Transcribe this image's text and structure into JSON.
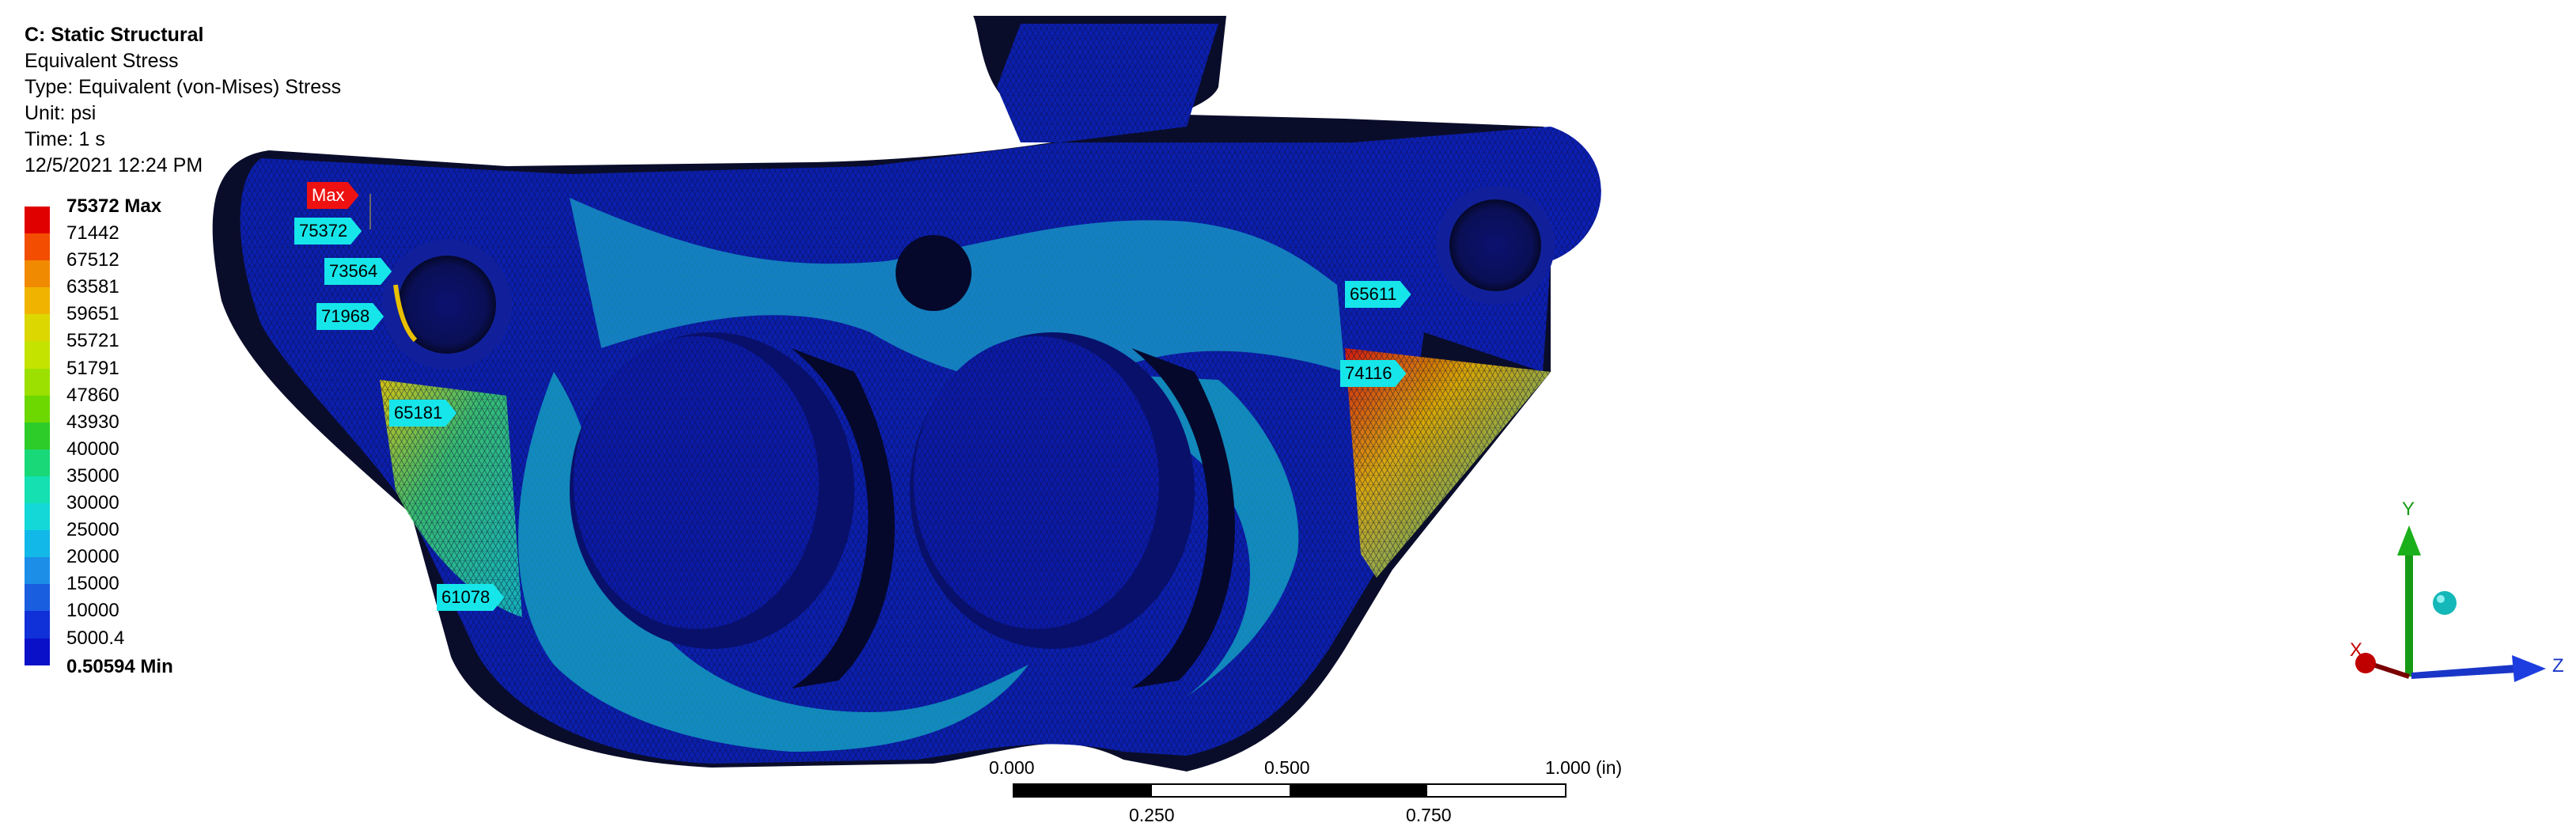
{
  "header": {
    "title": "C: Static Structural",
    "result": "Equivalent Stress",
    "type": "Type: Equivalent (von-Mises) Stress",
    "unit": "Unit: psi",
    "time": "Time: 1 s",
    "timestamp": "12/5/2021 12:24 PM"
  },
  "legend": {
    "max_label": "75372 Max",
    "min_label": "0.50594 Min",
    "values": [
      "71442",
      "67512",
      "63581",
      "59651",
      "55721",
      "51791",
      "47860",
      "43930",
      "40000",
      "35000",
      "30000",
      "25000",
      "20000",
      "15000",
      "10000",
      "5000.4"
    ],
    "colors": [
      "#e10000",
      "#f24d00",
      "#f08a00",
      "#f0b400",
      "#dcd700",
      "#c4e400",
      "#9be000",
      "#6cd800",
      "#2ecc28",
      "#18d878",
      "#14e0b2",
      "#14d8d8",
      "#12b8e8",
      "#1c8ee8",
      "#1a5ee0",
      "#1030d8",
      "#0a10c8"
    ]
  },
  "probes": {
    "max_tag": "Max",
    "p1": "75372",
    "p2": "73564",
    "p3": "71968",
    "p4": "65181",
    "p5": "61078",
    "p6": "65611",
    "p7": "74116"
  },
  "scale": {
    "l0": "0.000",
    "l050": "0.500",
    "l100": "1.000 (in)",
    "l025": "0.250",
    "l075": "0.750"
  },
  "triad": {
    "x": "X",
    "y": "Y",
    "z": "Z"
  }
}
